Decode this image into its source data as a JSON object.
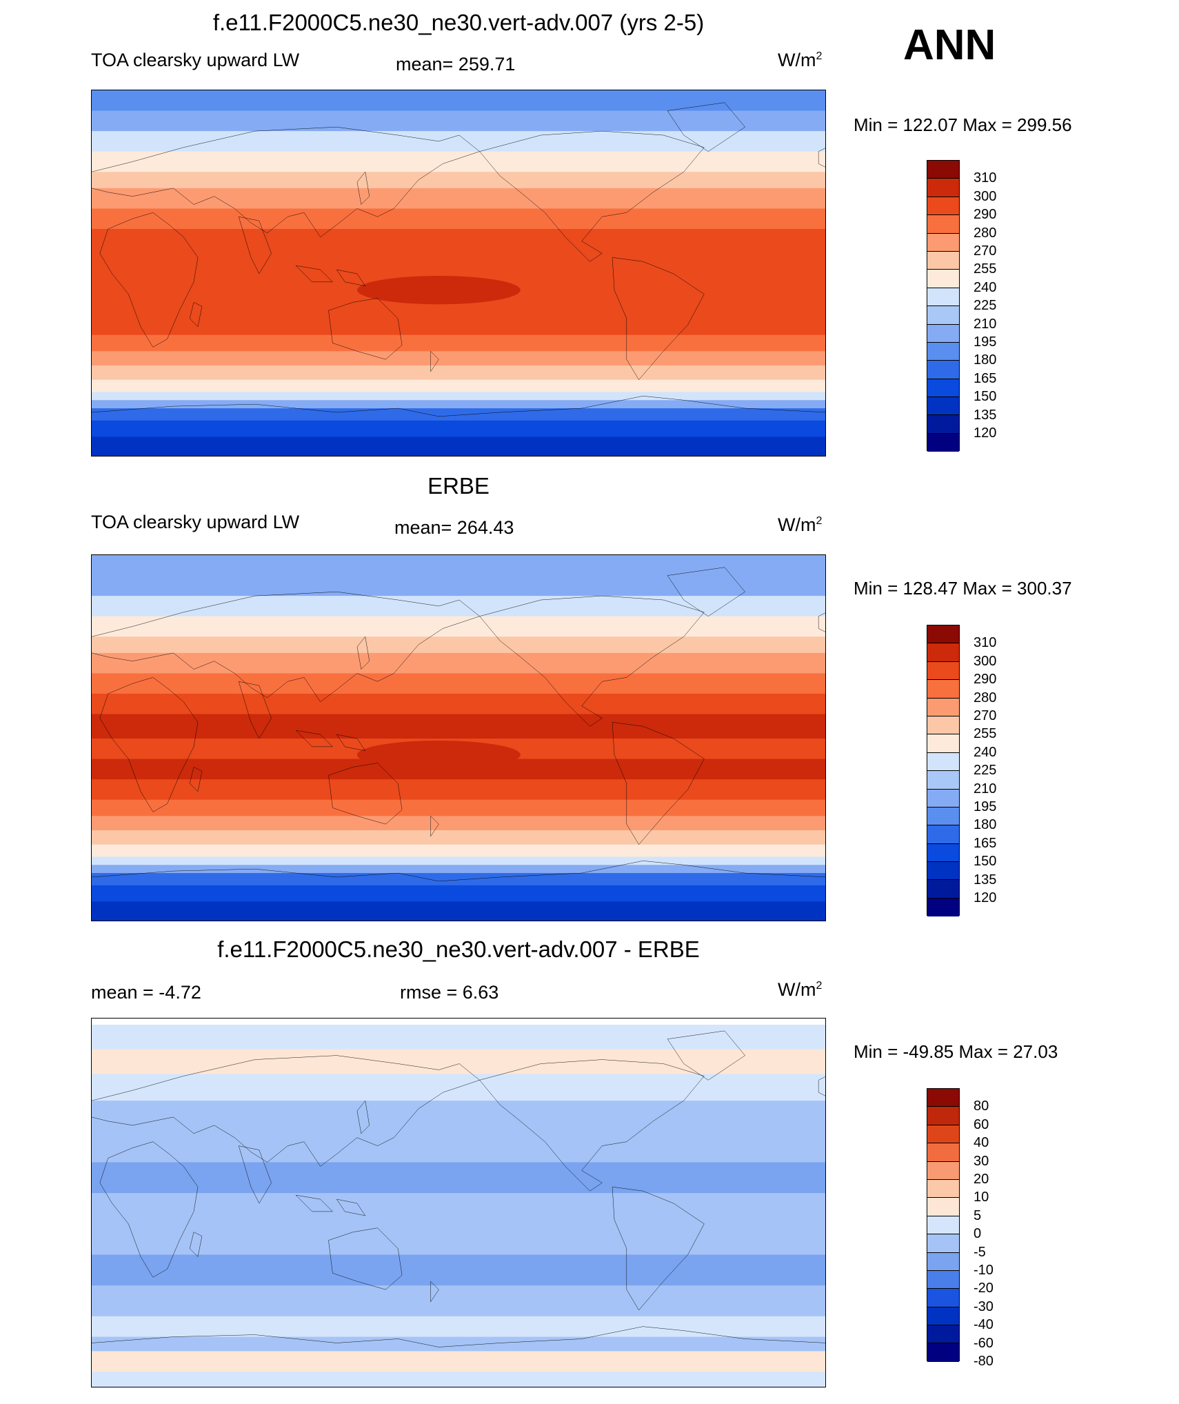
{
  "season": "ANN",
  "units_base": "W/m",
  "units_exp": "2",
  "panels": [
    {
      "title": "f.e11.F2000C5.ne30_ne30.vert-adv.007 (yrs 2-5)",
      "left_label": "TOA clearsky upward LW",
      "center_label": "mean= 259.71",
      "minmax": "Min = 122.07 Max = 299.56",
      "colorbar_labels": [
        "310",
        "300",
        "290",
        "280",
        "270",
        "255",
        "240",
        "225",
        "210",
        "195",
        "180",
        "165",
        "150",
        "135",
        "120"
      ]
    },
    {
      "title": "ERBE",
      "left_label": "TOA clearsky upward LW",
      "center_label": "mean= 264.43",
      "minmax": "Min = 128.47 Max = 300.37",
      "colorbar_labels": [
        "310",
        "300",
        "290",
        "280",
        "270",
        "255",
        "240",
        "225",
        "210",
        "195",
        "180",
        "165",
        "150",
        "135",
        "120"
      ]
    },
    {
      "title": "f.e11.F2000C5.ne30_ne30.vert-adv.007 - ERBE",
      "left_label": "mean =  -4.72",
      "center_label": "rmse =   6.63",
      "minmax": "Min = -49.85 Max =  27.03",
      "colorbar_labels": [
        "80",
        "60",
        "40",
        "30",
        "20",
        "10",
        "5",
        "0",
        "-5",
        "-10",
        "-20",
        "-30",
        "-40",
        "-60",
        "-80"
      ]
    }
  ],
  "colors": {
    "absolute_scale": [
      "#000080",
      "#001a9e",
      "#0033c2",
      "#0a4ade",
      "#2f6be8",
      "#5a8ff0",
      "#85abf4",
      "#aac8f7",
      "#d2e4fb",
      "#fdeadb",
      "#fcc7a7",
      "#fc9b72",
      "#f9703f",
      "#ea4a1c",
      "#cc2a0b",
      "#8c0a04"
    ],
    "diff_scale": [
      "#000080",
      "#001a9e",
      "#0033c2",
      "#1a54e0",
      "#4a7fe9",
      "#7aa4f0",
      "#a5c3f6",
      "#d5e6fc",
      "#fde6d5",
      "#fbc8a8",
      "#f99b72",
      "#f16d3f",
      "#de461a",
      "#bf280b",
      "#8c0a04"
    ]
  },
  "diff_bands": [
    {
      "lat": 87,
      "level": 7
    },
    {
      "lat": 75,
      "level": 8
    },
    {
      "lat": 63,
      "level": 7
    },
    {
      "lat": 50,
      "level": 6
    },
    {
      "lat": 35,
      "level": 6
    },
    {
      "lat": 20,
      "level": 5
    },
    {
      "lat": 5,
      "level": 6
    },
    {
      "lat": -10,
      "level": 6
    },
    {
      "lat": -25,
      "level": 5
    },
    {
      "lat": -40,
      "level": 6
    },
    {
      "lat": -55,
      "level": 7
    },
    {
      "lat": -65,
      "level": 6
    },
    {
      "lat": -72,
      "level": 8
    },
    {
      "lat": -82,
      "level": 7
    },
    {
      "lat": -90,
      "level": 6
    }
  ],
  "abs_bands": [
    {
      "lat": 90,
      "model": 5,
      "erbe": 6
    },
    {
      "lat": 80,
      "model": 6,
      "erbe": 6
    },
    {
      "lat": 70,
      "model": 8,
      "erbe": 8
    },
    {
      "lat": 60,
      "model": 9,
      "erbe": 9
    },
    {
      "lat": 50,
      "model": 10,
      "erbe": 10
    },
    {
      "lat": 42,
      "model": 11,
      "erbe": 11
    },
    {
      "lat": 32,
      "model": 12,
      "erbe": 12
    },
    {
      "lat": 22,
      "model": 13,
      "erbe": 13
    },
    {
      "lat": 12,
      "model": 13,
      "erbe": 14
    },
    {
      "lat": 0,
      "model": 13,
      "erbe": 13
    },
    {
      "lat": -10,
      "model": 13,
      "erbe": 14
    },
    {
      "lat": -20,
      "model": 13,
      "erbe": 13
    },
    {
      "lat": -30,
      "model": 12,
      "erbe": 12
    },
    {
      "lat": -38,
      "model": 11,
      "erbe": 11
    },
    {
      "lat": -45,
      "model": 10,
      "erbe": 10
    },
    {
      "lat": -52,
      "model": 9,
      "erbe": 9
    },
    {
      "lat": -58,
      "model": 8,
      "erbe": 8
    },
    {
      "lat": -62,
      "model": 6,
      "erbe": 6
    },
    {
      "lat": -66,
      "model": 4,
      "erbe": 4
    },
    {
      "lat": -72,
      "model": 3,
      "erbe": 3
    },
    {
      "lat": -80,
      "model": 2,
      "erbe": 2
    },
    {
      "lat": -90,
      "model": 1,
      "erbe": 1
    }
  ]
}
